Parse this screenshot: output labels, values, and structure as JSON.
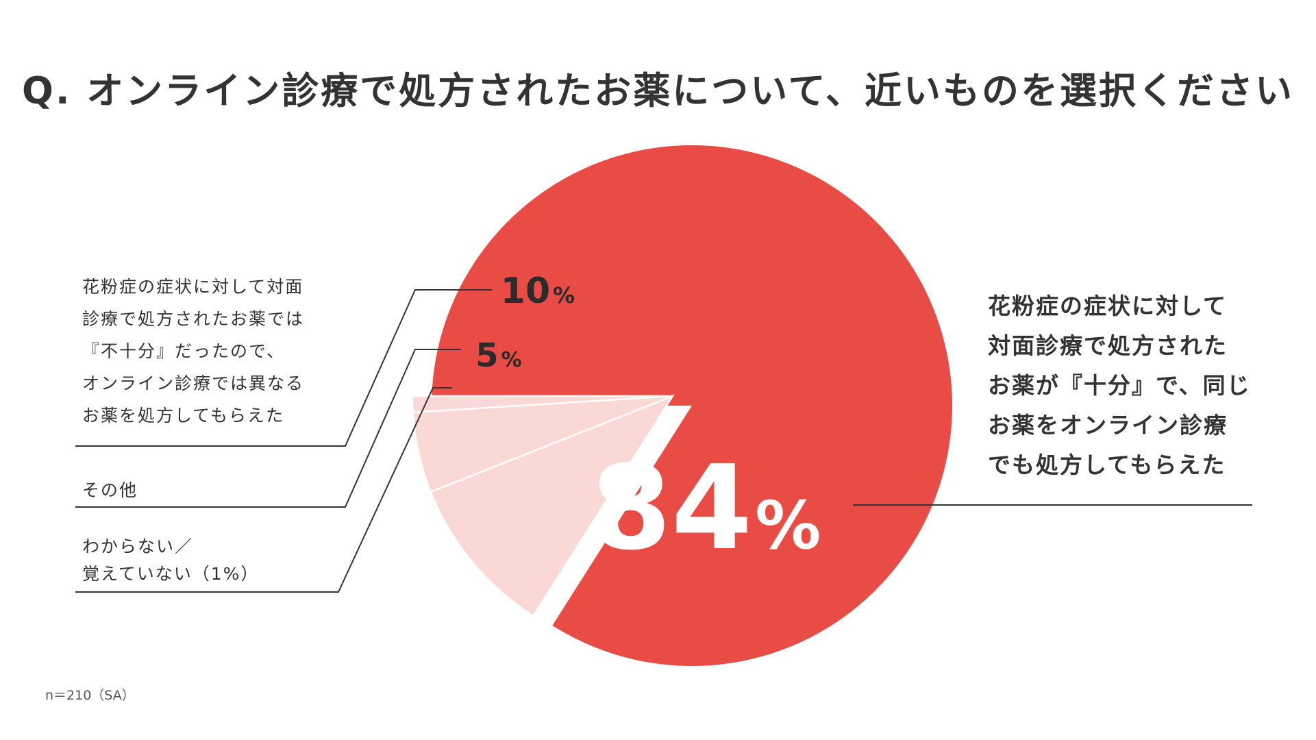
{
  "title": "Q. オンライン診療で処方されたお薬について、近いものを選択ください",
  "note": "n＝210（SA）",
  "chart_data": {
    "type": "pie",
    "title": "Q. オンライン診療で処方されたお薬について、近いものを選択ください",
    "unit": "%",
    "slices": [
      {
        "label": [
          "花粉症の症状に対して",
          "対面診療で処方された",
          "お薬が『十分』で、同じ",
          "お薬をオンライン診療",
          "でも処方してもらえた"
        ],
        "value": 84,
        "value_label": "84",
        "color": "#e94c45"
      },
      {
        "label": [
          "花粉症の症状に対して対面",
          "診療で処方されたお薬では",
          "『不十分』だったので、",
          "オンライン診療では異なる",
          "お薬を処方してもらえた"
        ],
        "value": 10,
        "value_label": "10",
        "color": "#f9d8d6"
      },
      {
        "label": [
          "その他"
        ],
        "value": 5,
        "value_label": "5",
        "color": "#f9d8d6"
      },
      {
        "label": [
          "わからない／",
          "覚えていない（1%）"
        ],
        "value": 1,
        "value_label": "",
        "color": "#f9d8d6"
      }
    ],
    "start": "9 o'clock, clockwise for the largest slice; small slices exploded toward upper-left",
    "legend": "callout labels with leader lines"
  }
}
